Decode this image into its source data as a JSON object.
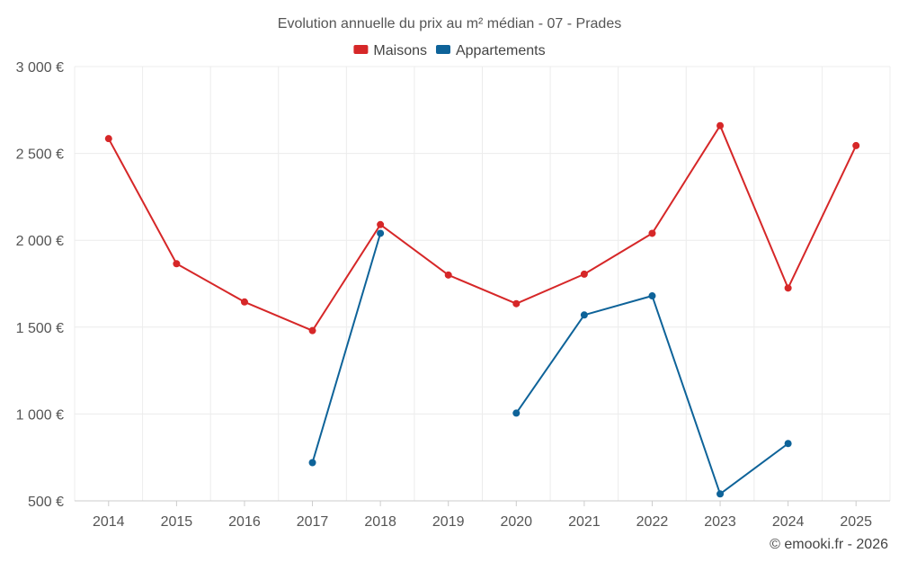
{
  "chart_data": {
    "type": "line",
    "title": "Evolution annuelle du prix au m² médian - 07 - Prades",
    "categories": [
      "2014",
      "2015",
      "2016",
      "2017",
      "2018",
      "2019",
      "2020",
      "2021",
      "2022",
      "2023",
      "2024",
      "2025"
    ],
    "series": [
      {
        "name": "Maisons",
        "color": "#d62728",
        "values": [
          2585,
          1865,
          1645,
          1480,
          2090,
          1800,
          1635,
          1805,
          2040,
          2660,
          1725,
          2545
        ]
      },
      {
        "name": "Appartements",
        "color": "#0e6399",
        "values": [
          null,
          null,
          null,
          720,
          2040,
          null,
          1005,
          1570,
          1680,
          540,
          830,
          null
        ]
      }
    ],
    "ylim": [
      500,
      3000
    ],
    "yticks": [
      500,
      1000,
      1500,
      2000,
      2500,
      3000
    ],
    "ytick_labels": [
      "500 €",
      "1 000 €",
      "1 500 €",
      "2 000 €",
      "2 500 €",
      "3 000 €"
    ],
    "xlabel": "",
    "ylabel": "",
    "grid": true,
    "legend_position": "top-center"
  },
  "credit": "© emooki.fr - 2026"
}
